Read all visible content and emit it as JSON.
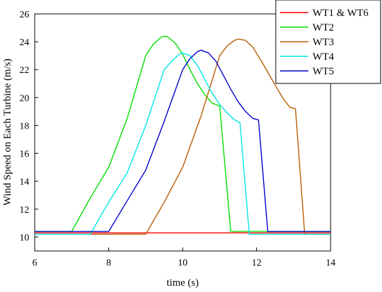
{
  "chart_data": {
    "type": "line",
    "xlabel": "time (s)",
    "ylabel": "Wind Speed on Each Turbine (m/s)",
    "xlim": [
      6,
      14
    ],
    "ylim": [
      9,
      26
    ],
    "x_ticks": [
      6,
      8,
      10,
      12,
      14
    ],
    "y_ticks": [
      10,
      12,
      14,
      16,
      18,
      20,
      22,
      24,
      26
    ],
    "grid": false,
    "legend_position": "top-right",
    "series": [
      {
        "name": "WT1 & WT6",
        "color": "#ff0000",
        "points": [
          [
            6,
            10.3
          ],
          [
            14,
            10.3
          ]
        ]
      },
      {
        "name": "WT2",
        "color": "#00dd00",
        "points": [
          [
            6,
            10.4
          ],
          [
            7.0,
            10.4
          ],
          [
            7.5,
            12.8
          ],
          [
            8.0,
            15.0
          ],
          [
            8.5,
            18.5
          ],
          [
            9.0,
            23.0
          ],
          [
            9.2,
            23.8
          ],
          [
            9.4,
            24.3
          ],
          [
            9.5,
            24.4
          ],
          [
            9.6,
            24.35
          ],
          [
            9.8,
            23.9
          ],
          [
            10.0,
            23.1
          ],
          [
            10.2,
            22.0
          ],
          [
            10.4,
            21.0
          ],
          [
            10.6,
            20.2
          ],
          [
            10.8,
            19.6
          ],
          [
            11.0,
            19.4
          ],
          [
            11.3,
            10.4
          ],
          [
            14,
            10.4
          ]
        ]
      },
      {
        "name": "WT3",
        "color": "#b85c00",
        "points": [
          [
            7.5,
            10.2
          ],
          [
            9.0,
            10.2
          ],
          [
            9.5,
            12.5
          ],
          [
            10.0,
            15.0
          ],
          [
            10.5,
            18.7
          ],
          [
            11.0,
            23.0
          ],
          [
            11.2,
            23.7
          ],
          [
            11.4,
            24.1
          ],
          [
            11.5,
            24.2
          ],
          [
            11.7,
            24.1
          ],
          [
            11.9,
            23.6
          ],
          [
            12.2,
            22.3
          ],
          [
            12.5,
            20.9
          ],
          [
            12.7,
            20.0
          ],
          [
            12.9,
            19.3
          ],
          [
            13.05,
            19.2
          ],
          [
            13.3,
            10.2
          ],
          [
            14,
            10.2
          ]
        ]
      },
      {
        "name": "WT4",
        "color": "#00e5e5",
        "points": [
          [
            6,
            10.2
          ],
          [
            7.5,
            10.2
          ],
          [
            8.0,
            12.5
          ],
          [
            8.5,
            14.6
          ],
          [
            9.0,
            18.0
          ],
          [
            9.5,
            22.0
          ],
          [
            9.7,
            22.6
          ],
          [
            9.9,
            23.1
          ],
          [
            10.0,
            23.2
          ],
          [
            10.2,
            23.0
          ],
          [
            10.4,
            22.3
          ],
          [
            10.6,
            21.3
          ],
          [
            10.8,
            20.3
          ],
          [
            11.0,
            19.5
          ],
          [
            11.2,
            18.9
          ],
          [
            11.4,
            18.4
          ],
          [
            11.55,
            18.2
          ],
          [
            11.8,
            10.2
          ],
          [
            14,
            10.2
          ]
        ]
      },
      {
        "name": "WT5",
        "color": "#0000cc",
        "points": [
          [
            6,
            10.4
          ],
          [
            8.0,
            10.4
          ],
          [
            8.5,
            12.6
          ],
          [
            9.0,
            14.8
          ],
          [
            9.5,
            18.3
          ],
          [
            10.0,
            22.0
          ],
          [
            10.2,
            22.8
          ],
          [
            10.4,
            23.3
          ],
          [
            10.5,
            23.4
          ],
          [
            10.7,
            23.2
          ],
          [
            10.9,
            22.6
          ],
          [
            11.1,
            21.6
          ],
          [
            11.3,
            20.6
          ],
          [
            11.5,
            19.7
          ],
          [
            11.7,
            19.0
          ],
          [
            11.9,
            18.5
          ],
          [
            12.05,
            18.4
          ],
          [
            12.3,
            10.4
          ],
          [
            14,
            10.4
          ]
        ]
      }
    ]
  }
}
